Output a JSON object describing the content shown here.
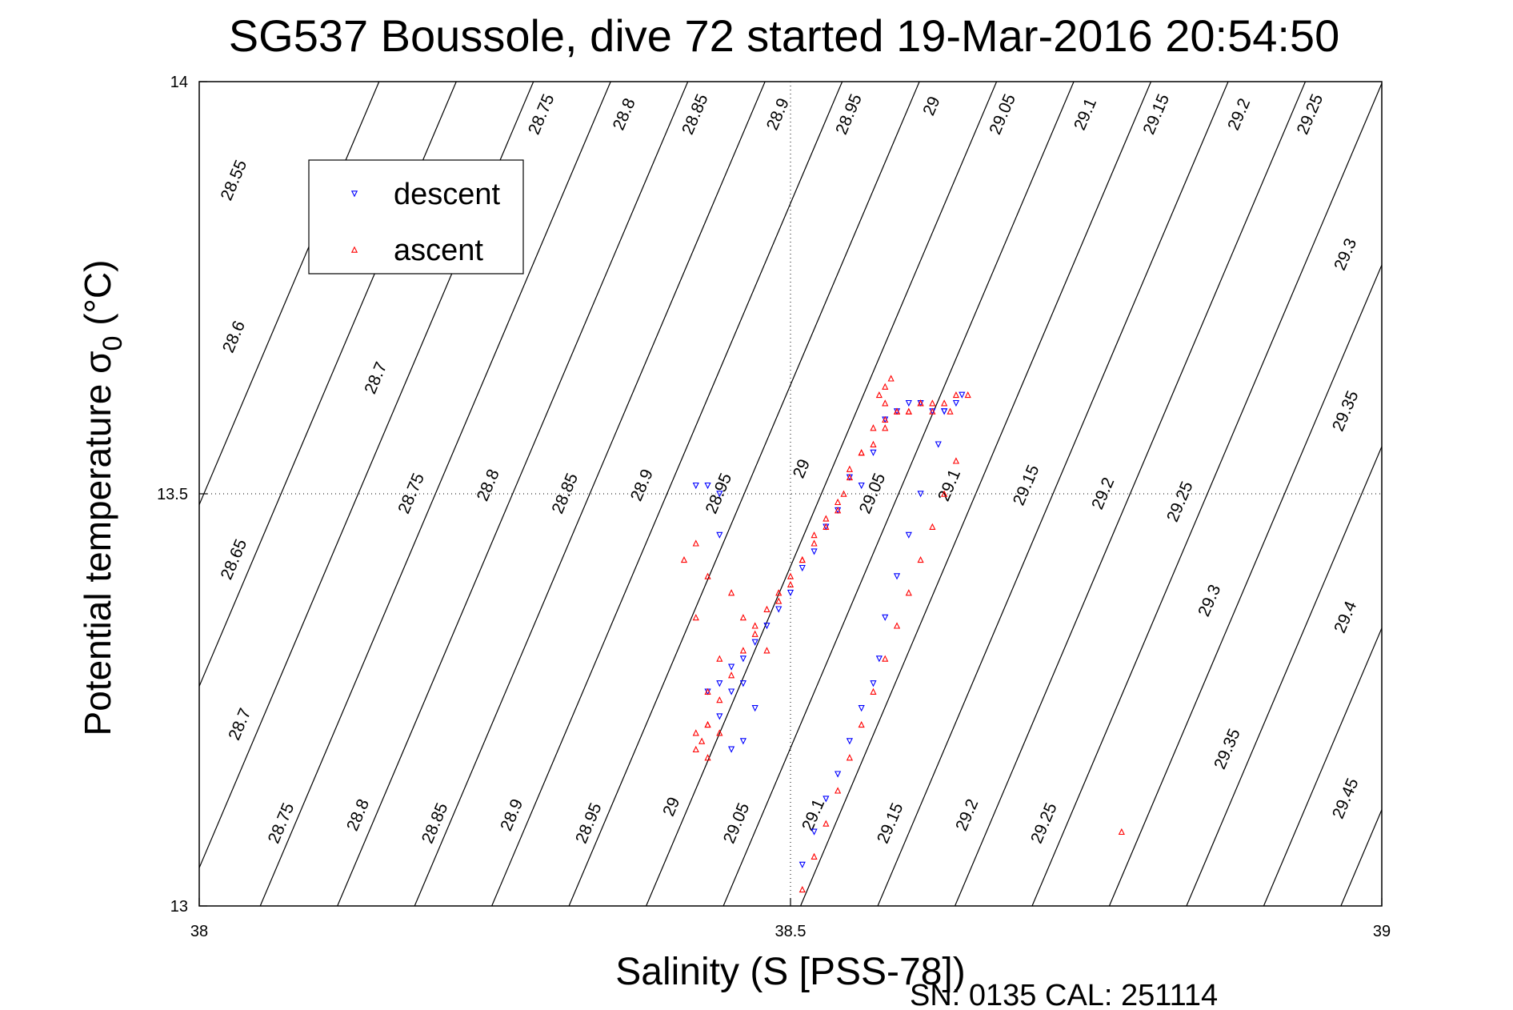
{
  "chart_data": {
    "type": "scatter",
    "title": "SG537 Boussole, dive 72 started 19-Mar-2016 20:54:50",
    "xlabel": "Salinity (S [PSS-78])",
    "ylabel_main": "Potential temperature σ",
    "ylabel_sub": "0",
    "ylabel_unit": " (°C)",
    "xlim": [
      38,
      39
    ],
    "ylim": [
      13,
      14
    ],
    "xticks": [
      "38",
      "38.5",
      "39"
    ],
    "yticks": [
      "13",
      "13.5",
      "14"
    ],
    "grid": "dotted lines at x=38.5 and y=13.5",
    "legend_position": "upper-left",
    "footer": "SN: 0135  CAL: 251114",
    "colors": {
      "descent": "#0000ff",
      "ascent": "#ff0000",
      "contour": "#000000"
    },
    "contours": {
      "levels": [
        28.55,
        28.6,
        28.65,
        28.7,
        28.75,
        28.8,
        28.85,
        28.9,
        28.95,
        29.0,
        29.05,
        29.1,
        29.15,
        29.2,
        29.25,
        29.3,
        29.35,
        29.4,
        29.45
      ],
      "labels": [
        {
          "text": "28.55",
          "x": 38.03,
          "y": 13.88
        },
        {
          "text": "28.75",
          "x": 38.29,
          "y": 13.96
        },
        {
          "text": "28.8",
          "x": 38.36,
          "y": 13.96
        },
        {
          "text": "28.85",
          "x": 38.42,
          "y": 13.96
        },
        {
          "text": "28.9",
          "x": 38.49,
          "y": 13.96
        },
        {
          "text": "28.95",
          "x": 38.55,
          "y": 13.96
        },
        {
          "text": "29",
          "x": 38.62,
          "y": 13.97
        },
        {
          "text": "29.05",
          "x": 38.68,
          "y": 13.96
        },
        {
          "text": "29.1",
          "x": 38.75,
          "y": 13.96
        },
        {
          "text": "29.15",
          "x": 38.81,
          "y": 13.96
        },
        {
          "text": "29.2",
          "x": 38.88,
          "y": 13.96
        },
        {
          "text": "29.25",
          "x": 38.94,
          "y": 13.96
        },
        {
          "text": "29.3",
          "x": 38.97,
          "y": 13.79
        },
        {
          "text": "28.6",
          "x": 38.03,
          "y": 13.69
        },
        {
          "text": "28.7",
          "x": 38.15,
          "y": 13.64
        },
        {
          "text": "29.35",
          "x": 38.97,
          "y": 13.6
        },
        {
          "text": "28.75",
          "x": 38.18,
          "y": 13.5
        },
        {
          "text": "28.8",
          "x": 38.245,
          "y": 13.51
        },
        {
          "text": "28.85",
          "x": 38.31,
          "y": 13.5
        },
        {
          "text": "28.9",
          "x": 38.375,
          "y": 13.51
        },
        {
          "text": "28.95",
          "x": 38.44,
          "y": 13.5
        },
        {
          "text": "29",
          "x": 38.51,
          "y": 13.53
        },
        {
          "text": "29.05",
          "x": 38.57,
          "y": 13.5
        },
        {
          "text": "29.1",
          "x": 38.635,
          "y": 13.51
        },
        {
          "text": "29.15",
          "x": 38.7,
          "y": 13.51
        },
        {
          "text": "29.2",
          "x": 38.765,
          "y": 13.5
        },
        {
          "text": "29.25",
          "x": 38.83,
          "y": 13.49
        },
        {
          "text": "28.65",
          "x": 38.03,
          "y": 13.42
        },
        {
          "text": "29.3",
          "x": 38.855,
          "y": 13.37
        },
        {
          "text": "29.4",
          "x": 38.97,
          "y": 13.35
        },
        {
          "text": "28.7",
          "x": 38.035,
          "y": 13.22
        },
        {
          "text": "29.35",
          "x": 38.87,
          "y": 13.19
        },
        {
          "text": "28.75",
          "x": 38.07,
          "y": 13.1
        },
        {
          "text": "28.8",
          "x": 38.135,
          "y": 13.11
        },
        {
          "text": "28.85",
          "x": 38.2,
          "y": 13.1
        },
        {
          "text": "28.9",
          "x": 38.265,
          "y": 13.11
        },
        {
          "text": "28.95",
          "x": 38.33,
          "y": 13.1
        },
        {
          "text": "29",
          "x": 38.4,
          "y": 13.12
        },
        {
          "text": "29.05",
          "x": 38.455,
          "y": 13.1
        },
        {
          "text": "29.1",
          "x": 38.52,
          "y": 13.11
        },
        {
          "text": "29.15",
          "x": 38.585,
          "y": 13.1
        },
        {
          "text": "29.2",
          "x": 38.65,
          "y": 13.11
        },
        {
          "text": "29.25",
          "x": 38.715,
          "y": 13.1
        },
        {
          "text": "29.45",
          "x": 38.97,
          "y": 13.13
        }
      ]
    },
    "series": [
      {
        "name": "descent",
        "marker": "triangle-down",
        "x": [
          38.42,
          38.43,
          38.44,
          38.44,
          38.43,
          38.44,
          38.45,
          38.44,
          38.45,
          38.46,
          38.47,
          38.46,
          38.45,
          38.46,
          38.47,
          38.48,
          38.49,
          38.5,
          38.51,
          38.52,
          38.53,
          38.54,
          38.55,
          38.56,
          38.57,
          38.58,
          38.59,
          38.6,
          38.61,
          38.62,
          38.63,
          38.63,
          38.64,
          38.645,
          38.625,
          38.61,
          38.6,
          38.59,
          38.58,
          38.575,
          38.57,
          38.56,
          38.55,
          38.54,
          38.53,
          38.52,
          38.51
        ],
        "y": [
          13.51,
          13.51,
          13.5,
          13.45,
          13.26,
          13.23,
          13.26,
          13.27,
          13.29,
          13.27,
          13.24,
          13.2,
          13.19,
          13.3,
          13.32,
          13.34,
          13.36,
          13.38,
          13.41,
          13.43,
          13.46,
          13.48,
          13.52,
          13.51,
          13.55,
          13.59,
          13.6,
          13.61,
          13.61,
          13.6,
          13.6,
          13.6,
          13.61,
          13.62,
          13.56,
          13.5,
          13.45,
          13.4,
          13.35,
          13.3,
          13.27,
          13.24,
          13.2,
          13.16,
          13.13,
          13.09,
          13.05
        ]
      },
      {
        "name": "ascent",
        "marker": "triangle-up",
        "x": [
          38.51,
          38.52,
          38.53,
          38.54,
          38.55,
          38.56,
          38.57,
          38.58,
          38.59,
          38.6,
          38.61,
          38.62,
          38.63,
          38.64,
          38.635,
          38.62,
          38.61,
          38.6,
          38.59,
          38.58,
          38.575,
          38.58,
          38.585,
          38.58,
          38.57,
          38.56,
          38.55,
          38.545,
          38.54,
          38.53,
          38.52,
          38.51,
          38.5,
          38.49,
          38.48,
          38.47,
          38.46,
          38.45,
          38.44,
          38.43,
          38.425,
          38.43,
          38.42,
          38.42,
          38.43,
          38.44,
          38.43,
          38.44,
          38.42,
          38.41,
          38.42,
          38.43,
          38.45,
          38.46,
          38.47,
          38.48,
          38.49,
          38.5,
          38.51,
          38.52,
          38.53,
          38.54,
          38.55,
          38.56,
          38.57,
          38.58,
          38.59,
          38.6,
          38.61,
          38.62,
          38.63,
          38.64,
          38.65,
          38.78
        ],
        "x_note": "",
        "y": [
          13.02,
          13.06,
          13.1,
          13.14,
          13.18,
          13.22,
          13.26,
          13.3,
          13.34,
          13.38,
          13.42,
          13.46,
          13.5,
          13.54,
          13.6,
          13.6,
          13.61,
          13.6,
          13.6,
          13.59,
          13.62,
          13.63,
          13.64,
          13.61,
          13.58,
          13.55,
          13.53,
          13.5,
          13.48,
          13.46,
          13.44,
          13.42,
          13.4,
          13.38,
          13.36,
          13.34,
          13.31,
          13.28,
          13.25,
          13.22,
          13.2,
          13.22,
          13.21,
          13.19,
          13.18,
          13.21,
          13.26,
          13.3,
          13.35,
          13.42,
          13.44,
          13.4,
          13.38,
          13.35,
          13.33,
          13.31,
          13.37,
          13.39,
          13.42,
          13.45,
          13.47,
          13.49,
          13.52,
          13.55,
          13.56,
          13.58,
          13.6,
          13.6,
          13.61,
          13.61,
          13.61,
          13.62,
          13.62,
          13.09
        ]
      }
    ]
  }
}
